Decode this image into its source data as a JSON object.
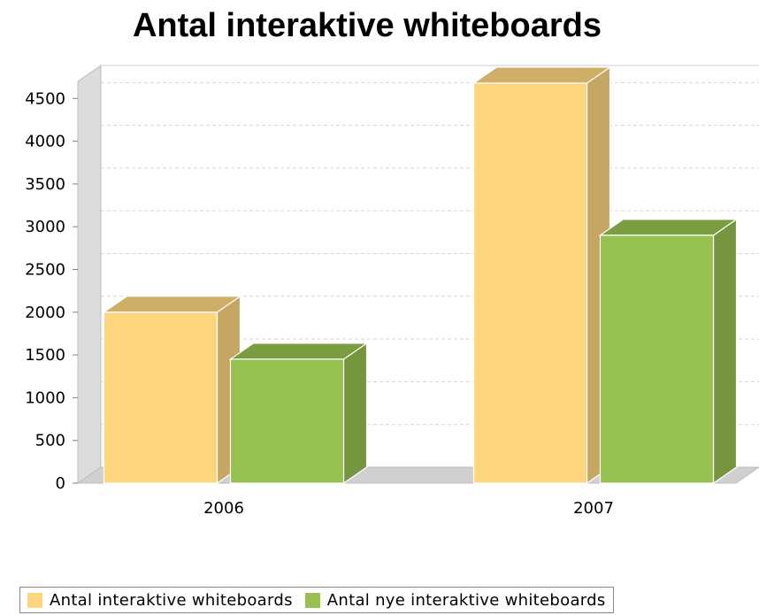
{
  "chart_data": {
    "type": "bar",
    "title": "Antal interaktive whiteboards",
    "categories": [
      "2006",
      "2007"
    ],
    "series": [
      {
        "name": "Antal interaktive whiteboards",
        "values": [
          2000,
          4680
        ],
        "color": "#fdd57e"
      },
      {
        "name": "Antal nye interaktive whiteboards",
        "values": [
          1450,
          2900
        ],
        "color": "#96c050"
      }
    ],
    "yticks": [
      0,
      500,
      1000,
      1500,
      2000,
      2500,
      3000,
      3500,
      4000,
      4500
    ],
    "ylim": [
      0,
      4700
    ],
    "grid": true,
    "legend_position": "bottom",
    "style": "3d"
  }
}
